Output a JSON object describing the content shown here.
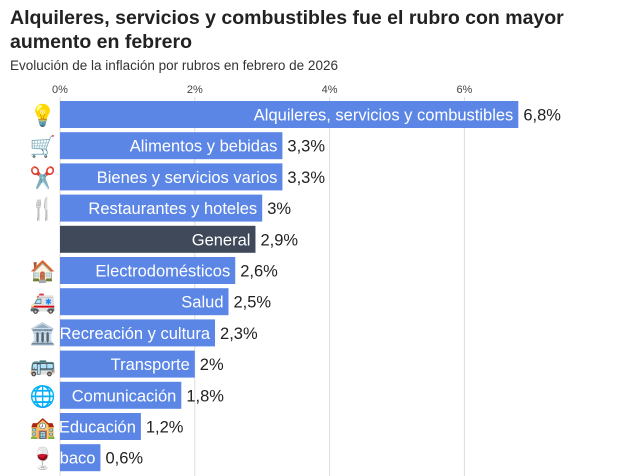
{
  "title": "Alquileres, servicios y combustibles fue el rubro con mayor aumento en febrero",
  "subtitle": "Evolución de la inflación por rubros en febrero de 2026",
  "colors": {
    "bar": "#5b86e5",
    "highlight": "#40495a",
    "grid": "#dddddd",
    "label": "#ffffff"
  },
  "chart_data": {
    "type": "bar",
    "orientation": "horizontal",
    "xlim": [
      0,
      8
    ],
    "x_ticks": [
      "0%",
      "2%",
      "4%",
      "6%"
    ],
    "grid": true,
    "categories": [
      "Alquileres, servicios y combustibles",
      "Alimentos y bebidas",
      "Bienes y servicios varios",
      "Restaurantes y hoteles",
      "General",
      "Electrodomésticos",
      "Salud",
      "Recreación y cultura",
      "Transporte",
      "Comunicación",
      "Educación",
      "Tabaco"
    ],
    "values": [
      6.8,
      3.3,
      3.3,
      3.0,
      2.9,
      2.6,
      2.5,
      2.3,
      2.0,
      1.8,
      1.2,
      0.6
    ],
    "value_labels": [
      "6,8%",
      "3,3%",
      "3,3%",
      "3%",
      "2,9%",
      "2,6%",
      "2,5%",
      "2,3%",
      "2%",
      "1,8%",
      "1,2%",
      "0,6%"
    ],
    "icons": [
      "💡",
      "🛒",
      "✂️",
      "🍴",
      "",
      "🏠",
      "🚑",
      "🏛️",
      "🚌",
      "🌐",
      "🏫",
      "🍷"
    ],
    "highlight": "General"
  }
}
